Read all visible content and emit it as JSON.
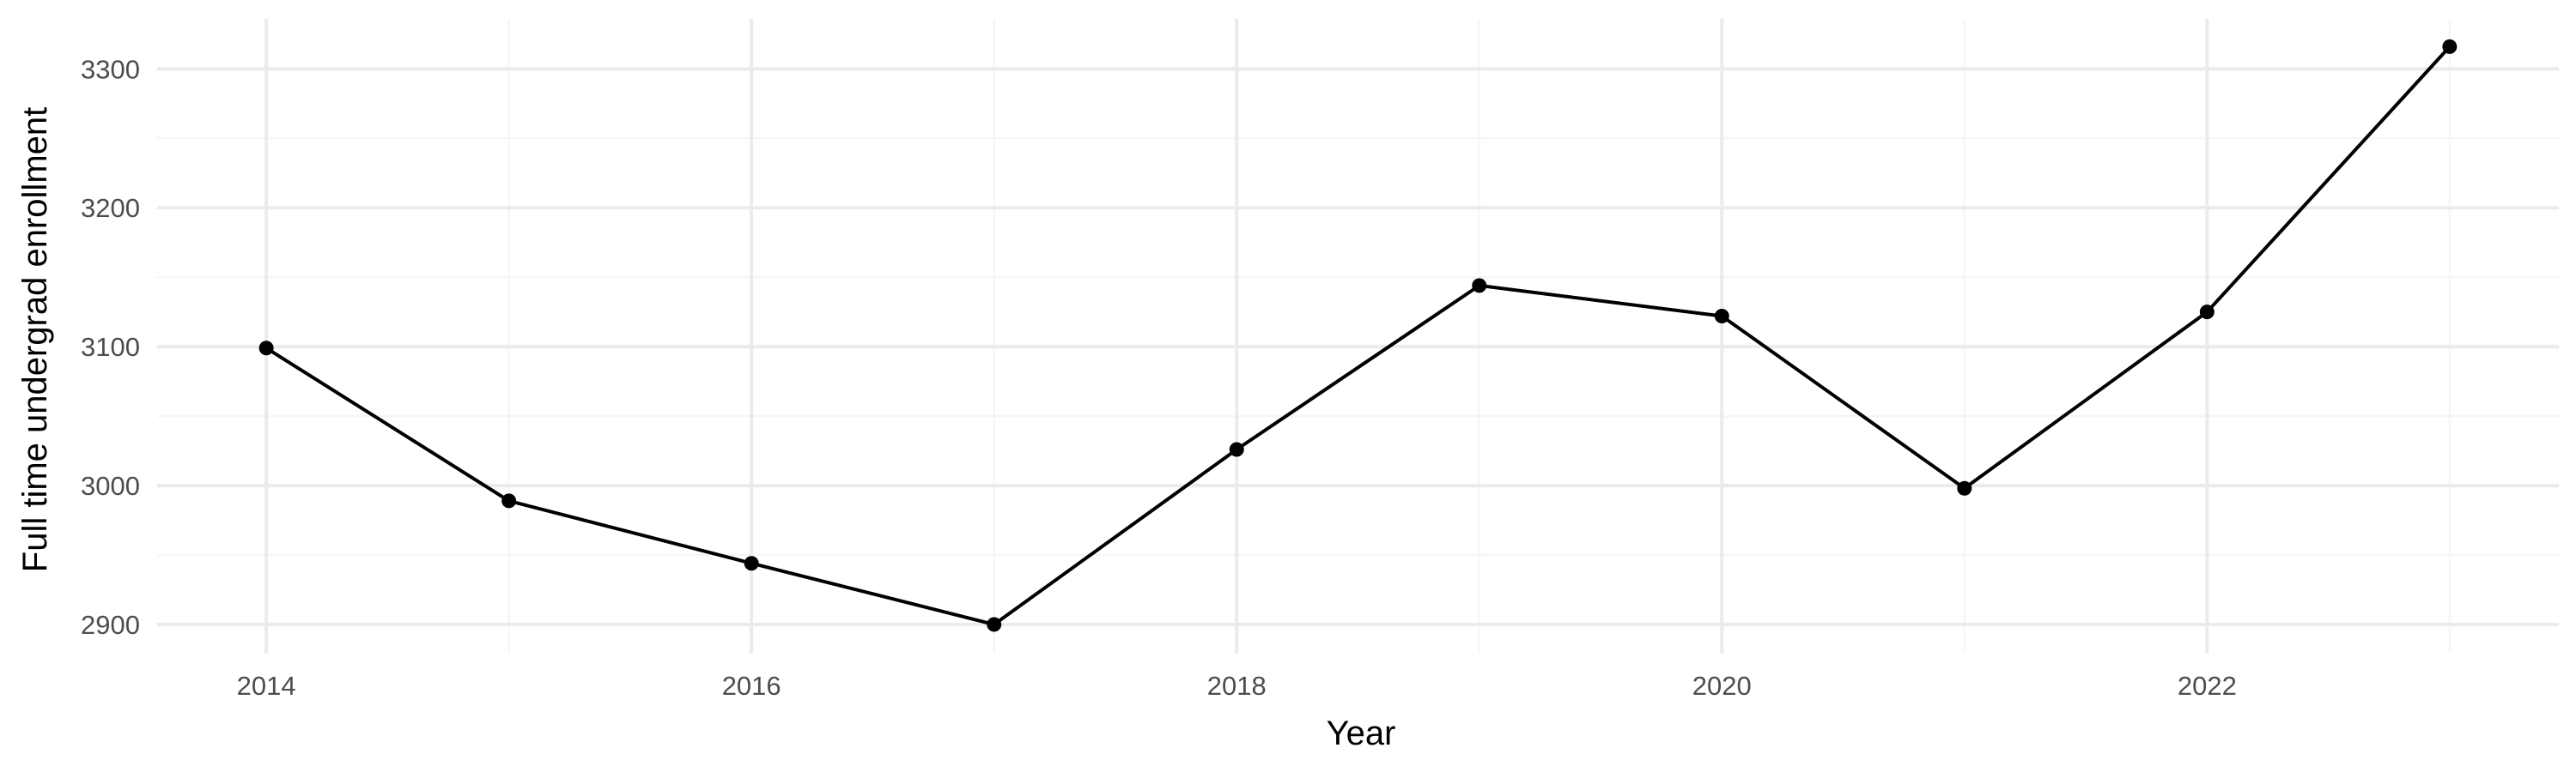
{
  "chart_data": {
    "type": "line",
    "title": "",
    "xlabel": "Year",
    "ylabel": "Full time undergrad enrollment",
    "x": [
      2014,
      2015,
      2016,
      2017,
      2018,
      2019,
      2020,
      2021,
      2022,
      2023
    ],
    "series": [
      {
        "values": [
          3099,
          2989,
          2944,
          2900,
          3026,
          3144,
          3122,
          2998,
          3125,
          3316
        ]
      }
    ],
    "x_ticks": [
      "2014",
      "2016",
      "2018",
      "2020",
      "2022"
    ],
    "y_ticks": [
      "2900",
      "3000",
      "3100",
      "3200",
      "3300"
    ],
    "xlim": [
      2013.55,
      2023.45
    ],
    "ylim": [
      2879,
      3336
    ],
    "grid": true,
    "legend": "none",
    "colors": {
      "line": "#000000",
      "point": "#000000",
      "grid_major": "#ebebeb",
      "grid_minor": "#f5f5f5",
      "tick_text": "#4d4d4d"
    }
  }
}
